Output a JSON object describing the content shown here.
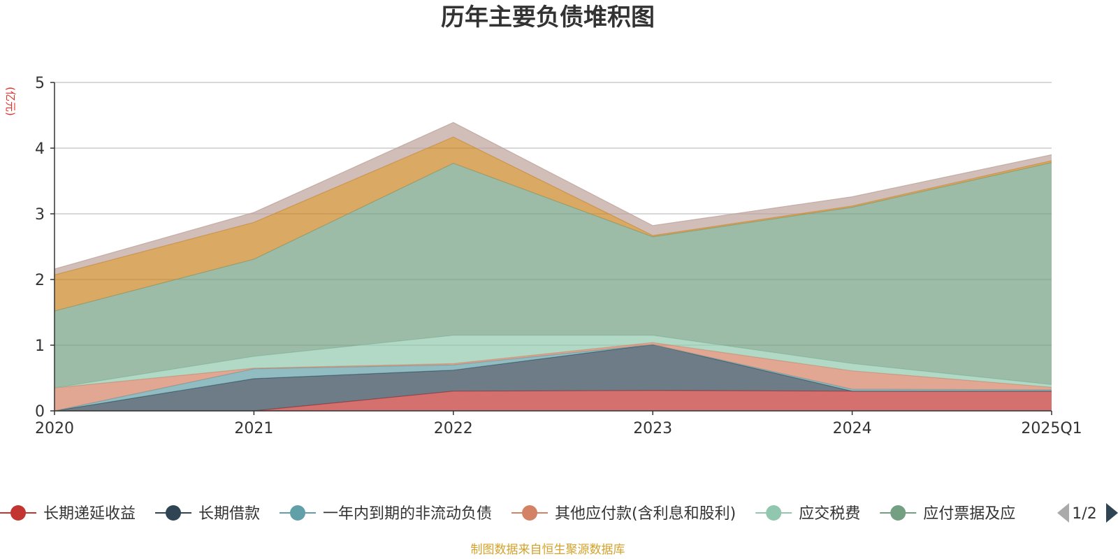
{
  "chart_data": {
    "type": "area",
    "stacked": true,
    "title": "历年主要负债堆积图",
    "unit": "(亿元)",
    "x": [
      "2020",
      "2021",
      "2022",
      "2023",
      "2024",
      "2025Q1"
    ],
    "ylim": [
      0,
      5
    ],
    "yticks": [
      "0",
      "1",
      "2",
      "3",
      "4",
      "5"
    ],
    "grid": true,
    "legend_position": "bottom",
    "series": [
      {
        "name": "长期递延收益",
        "color": "#c23531",
        "values": [
          0.0,
          0.0,
          0.3,
          0.31,
          0.3,
          0.3
        ]
      },
      {
        "name": "长期借款",
        "color": "#2f4554",
        "values": [
          0.0,
          0.49,
          0.32,
          0.7,
          0.0,
          0.0
        ]
      },
      {
        "name": "一年内到期的非流动负债",
        "color": "#61a0a8",
        "values": [
          0.0,
          0.15,
          0.08,
          0.0,
          0.03,
          0.02
        ]
      },
      {
        "name": "其他应付款(含利息和股利)",
        "color": "#d48265",
        "values": [
          0.35,
          0.01,
          0.02,
          0.03,
          0.28,
          0.04
        ]
      },
      {
        "name": "应交税费",
        "color": "#91c7ae",
        "values": [
          0.0,
          0.18,
          0.43,
          0.11,
          0.11,
          0.04
        ]
      },
      {
        "name": "应付票据及应付账款",
        "color": "#749f83",
        "values": [
          1.17,
          1.48,
          2.62,
          1.5,
          2.38,
          3.38
        ]
      },
      {
        "name": "",
        "color": "#ca8622",
        "values": [
          0.55,
          0.56,
          0.4,
          0.02,
          0.02,
          0.03
        ]
      },
      {
        "name": "",
        "color": "#bda29a",
        "values": [
          0.09,
          0.15,
          0.22,
          0.15,
          0.14,
          0.09
        ]
      }
    ]
  },
  "legend_visible_count": 6,
  "legend_page": "1/2",
  "legend_last_label_visible": "应付票据及应",
  "source": "制图数据来自恒生聚源数据库"
}
